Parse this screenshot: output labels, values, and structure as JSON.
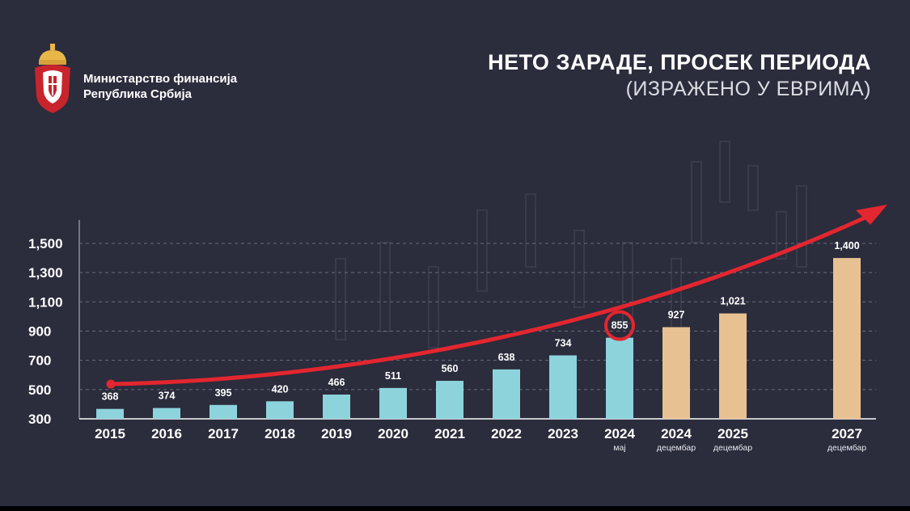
{
  "header": {
    "ministry_line1": "Министарство финансија",
    "ministry_line2": "Република Србија",
    "title": "НЕТО ЗАРАДЕ, ПРОСЕК ПЕРИОДА",
    "subtitle": "(ИЗРАЖЕНО У ЕВРИМА)"
  },
  "logo": {
    "icon": "serbian-coat-of-arms-icon"
  },
  "colors": {
    "background": "#2b2c3c",
    "actual_bar": "#8dd3dc",
    "projected_bar": "#e8c193",
    "trend_arrow": "#e3262f",
    "highlight_circle": "#e3262f",
    "gridline": "#6a6b7c"
  },
  "chart_data": {
    "type": "bar",
    "title": "НЕТО ЗАРАДЕ, ПРОСЕК ПЕРИОДА",
    "subtitle": "(ИЗРАЖЕНО У ЕВРИМА)",
    "xlabel": "",
    "ylabel": "",
    "ylim": [
      300,
      1650
    ],
    "yticks": [
      300,
      500,
      700,
      900,
      1100,
      1300,
      1500
    ],
    "ytick_labels": [
      "300",
      "500",
      "700",
      "900",
      "1,100",
      "1,300",
      "1,500"
    ],
    "grid": "horizontal dashed",
    "categories": [
      "2015",
      "2016",
      "2017",
      "2018",
      "2019",
      "2020",
      "2021",
      "2022",
      "2023",
      "2024",
      "2024",
      "2025",
      "2027"
    ],
    "category_sublabels": [
      "",
      "",
      "",
      "",
      "",
      "",
      "",
      "",
      "",
      "мај",
      "децембар",
      "децембар",
      "децембар"
    ],
    "values": [
      368,
      374,
      395,
      420,
      466,
      511,
      560,
      638,
      734,
      855,
      927,
      1021,
      1400
    ],
    "value_labels": [
      "368",
      "374",
      "395",
      "420",
      "466",
      "511",
      "560",
      "638",
      "734",
      "855",
      "927",
      "1,021",
      "1,400"
    ],
    "series_kind": [
      "actual",
      "actual",
      "actual",
      "actual",
      "actual",
      "actual",
      "actual",
      "actual",
      "actual",
      "actual",
      "projected",
      "projected",
      "projected"
    ],
    "highlighted_index": 9,
    "trend_arrow": "exponential growth arrow from 2015 rising to upper right"
  }
}
